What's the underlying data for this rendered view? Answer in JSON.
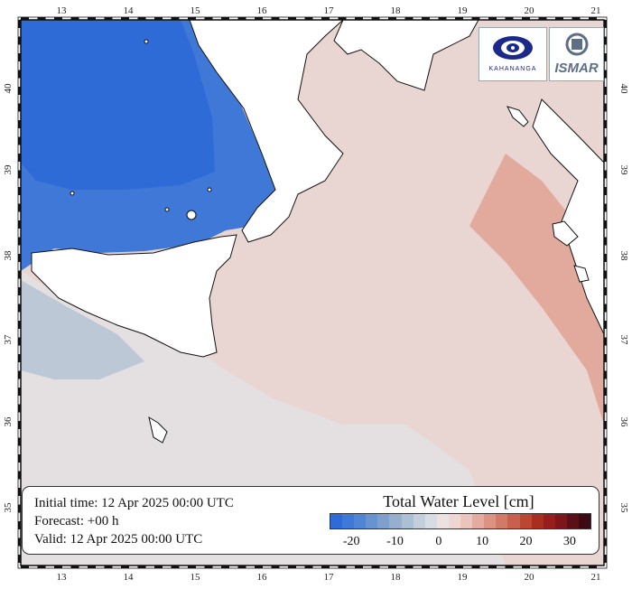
{
  "map": {
    "lon_ticks": [
      "13",
      "14",
      "15",
      "16",
      "17",
      "18",
      "19",
      "20",
      "21"
    ],
    "lat_ticks": [
      "40",
      "39",
      "38",
      "37",
      "36",
      "35"
    ]
  },
  "info": {
    "initial_time": "Initial time: 12 Apr 2025 00:00 UTC",
    "forecast": "Forecast: +00 h",
    "valid": "Valid: 12 Apr 2025 00:00 UTC"
  },
  "colorbar": {
    "title": "Total Water Level [cm]",
    "tick_labels": [
      "-20",
      "-10",
      "0",
      "10",
      "20",
      "30"
    ],
    "range": [
      -25,
      35
    ],
    "colors": [
      "#2f6bd6",
      "#3f78d6",
      "#5085d4",
      "#6793d1",
      "#7ea0ce",
      "#95afcc",
      "#abc0d4",
      "#c3cfdc",
      "#d8dde3",
      "#ebe3e2",
      "#efd6d2",
      "#ebc4bc",
      "#e4aca0",
      "#dc9383",
      "#d27a67",
      "#c7604c",
      "#bb4634",
      "#ab2d22",
      "#961f1e",
      "#7c161b",
      "#5a1016",
      "#3c0a10"
    ]
  },
  "logos": {
    "left_text": "KAHANANGA",
    "right_text": "ISMAR"
  },
  "colors": {
    "land": "#ffffff",
    "strong_negative": "#2f6bd6",
    "weak_negative": "#8ea9cc",
    "neutral": "#e4e0e1",
    "weak_positive": "#ecd4cf",
    "positive": "#e7b9af"
  }
}
